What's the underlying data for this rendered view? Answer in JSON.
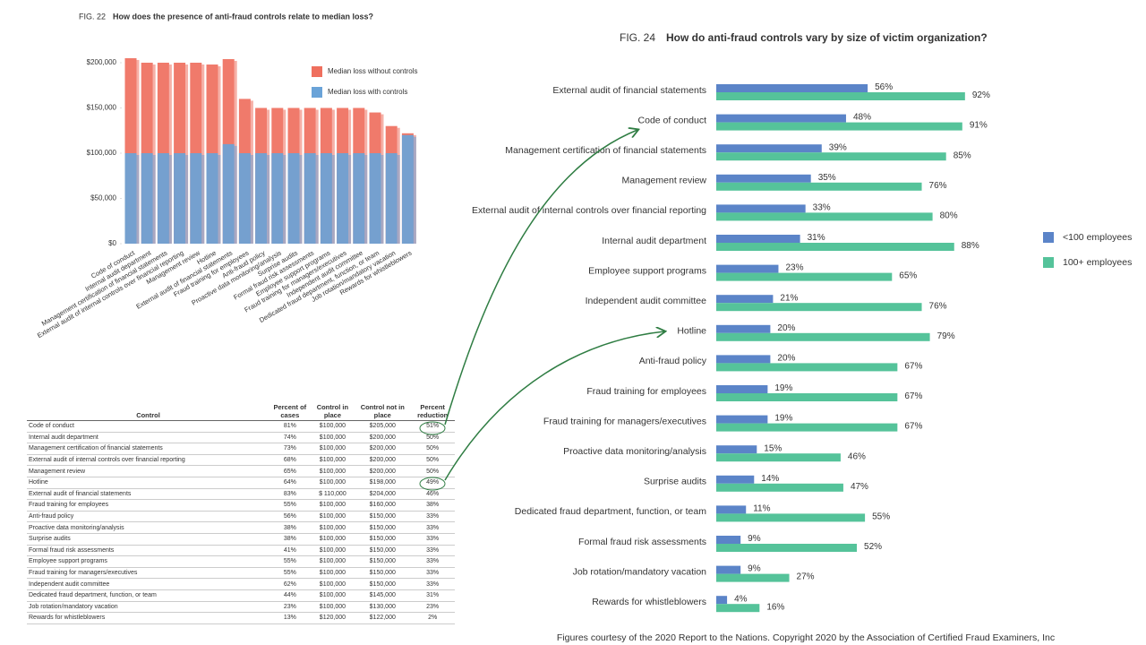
{
  "chart_data": [
    {
      "type": "bar",
      "figure_label": "FIG. 22",
      "title": "How does the presence of anti-fraud controls relate to median loss?",
      "categories": [
        "Code of conduct",
        "Internal audit department",
        "Management certification of financial statements",
        "External audit of internal controls over financial reporting",
        "Management review",
        "Hotline",
        "External audit of financial statements",
        "Fraud training for employees",
        "Anti-fraud policy",
        "Proactive data monitoring/analysis",
        "Surprise audits",
        "Formal fraud risk assessments",
        "Employee support programs",
        "Fraud training for managers/executives",
        "Independent audit committee",
        "Dedicated fraud department, function, or team",
        "Job rotation/mandatory vacation",
        "Rewards for whistleblowers"
      ],
      "series": [
        {
          "name": "Median loss without controls",
          "color": "#ef6f5e",
          "values": [
            205000,
            200000,
            200000,
            200000,
            200000,
            198000,
            204000,
            160000,
            150000,
            150000,
            150000,
            150000,
            150000,
            150000,
            150000,
            145000,
            130000,
            122000
          ]
        },
        {
          "name": "Median loss with controls",
          "color": "#6aa3d8",
          "values": [
            100000,
            100000,
            100000,
            100000,
            100000,
            100000,
            110000,
            100000,
            100000,
            100000,
            100000,
            100000,
            100000,
            100000,
            100000,
            100000,
            100000,
            120000
          ]
        }
      ],
      "ylim": [
        0,
        210000
      ],
      "yticks": [
        {
          "value": 0,
          "label": "$0"
        },
        {
          "value": 50000,
          "label": "$50,000"
        },
        {
          "value": 100000,
          "label": "$100,000"
        },
        {
          "value": 150000,
          "label": "$150,000"
        },
        {
          "value": 200000,
          "label": "$200,000"
        }
      ],
      "legend": "top-right"
    },
    {
      "type": "hbar",
      "figure_label": "FIG. 24",
      "title": "How do anti-fraud controls vary by size of victim organization?",
      "categories": [
        "External audit of financial statements",
        "Code of conduct",
        "Management certification of financial statements",
        "Management review",
        "External audit of internal controls over financial reporting",
        "Internal audit department",
        "Employee support programs",
        "Independent audit committee",
        "Hotline",
        "Anti-fraud policy",
        "Fraud training for employees",
        "Fraud training for managers/executives",
        "Proactive data monitoring/analysis",
        "Surprise audits",
        "Dedicated fraud department, function, or team",
        "Formal fraud risk assessments",
        "Job rotation/mandatory vacation",
        "Rewards for whistleblowers"
      ],
      "series": [
        {
          "name": "<100 employees",
          "color": "#5b84c8",
          "values": [
            56,
            48,
            39,
            35,
            33,
            31,
            23,
            21,
            20,
            20,
            19,
            19,
            15,
            14,
            11,
            9,
            9,
            4
          ],
          "value_labels": [
            "56%",
            "48%",
            "39%",
            "35%",
            "33%",
            "31%",
            "23%",
            "21%",
            "20%",
            "20%",
            "19%",
            "19%",
            "15%",
            "14%",
            "11%",
            "9%",
            "9%",
            "4%"
          ]
        },
        {
          "name": "100+ employees",
          "color": "#55c39a",
          "values": [
            92,
            91,
            85,
            76,
            80,
            88,
            65,
            76,
            79,
            67,
            67,
            67,
            46,
            47,
            55,
            52,
            27,
            16
          ],
          "value_labels": [
            "92%",
            "91%",
            "85%",
            "76%",
            "80%",
            "88%",
            "65%",
            "76%",
            "79%",
            "67%",
            "67%",
            "67%",
            "46%",
            "47%",
            "55%",
            "52%",
            "27%",
            "16%"
          ]
        }
      ],
      "xlim": [
        0,
        100
      ],
      "legend": "right"
    }
  ],
  "table": {
    "headers": [
      "Control",
      "Percent of cases",
      "Control in place",
      "Control not in place",
      "Percent reduction"
    ],
    "rows": [
      [
        "Code of conduct",
        "81%",
        "$100,000",
        "$205,000",
        "51%"
      ],
      [
        "Internal audit department",
        "74%",
        "$100,000",
        "$200,000",
        "50%"
      ],
      [
        "Management certification of financial statements",
        "73%",
        "$100,000",
        "$200,000",
        "50%"
      ],
      [
        "External audit of internal controls over financial reporting",
        "68%",
        "$100,000",
        "$200,000",
        "50%"
      ],
      [
        "Management review",
        "65%",
        "$100,000",
        "$200,000",
        "50%"
      ],
      [
        "Hotline",
        "64%",
        "$100,000",
        "$198,000",
        "49%"
      ],
      [
        "External audit of financial statements",
        "83%",
        "$ 110,000",
        "$204,000",
        "46%"
      ],
      [
        "Fraud training for employees",
        "55%",
        "$100,000",
        "$160,000",
        "38%"
      ],
      [
        "Anti-fraud policy",
        "56%",
        "$100,000",
        "$150,000",
        "33%"
      ],
      [
        "Proactive data monitoring/analysis",
        "38%",
        "$100,000",
        "$150,000",
        "33%"
      ],
      [
        "Surprise audits",
        "38%",
        "$100,000",
        "$150,000",
        "33%"
      ],
      [
        "Formal fraud risk assessments",
        "41%",
        "$100,000",
        "$150,000",
        "33%"
      ],
      [
        "Employee support programs",
        "55%",
        "$100,000",
        "$150,000",
        "33%"
      ],
      [
        "Fraud training for managers/executives",
        "55%",
        "$100,000",
        "$150,000",
        "33%"
      ],
      [
        "Independent audit committee",
        "62%",
        "$100,000",
        "$150,000",
        "33%"
      ],
      [
        "Dedicated fraud department, function, or team",
        "44%",
        "$100,000",
        "$145,000",
        "31%"
      ],
      [
        "Job rotation/mandatory vacation",
        "23%",
        "$100,000",
        "$130,000",
        "23%"
      ],
      [
        "Rewards for whistleblowers",
        "13%",
        "$120,000",
        "$122,000",
        "2%"
      ]
    ]
  },
  "caption": "Figures courtesy of the  2020 Report to the Nations. Copyright 2020 by the Association of Certified Fraud Examiners, Inc"
}
